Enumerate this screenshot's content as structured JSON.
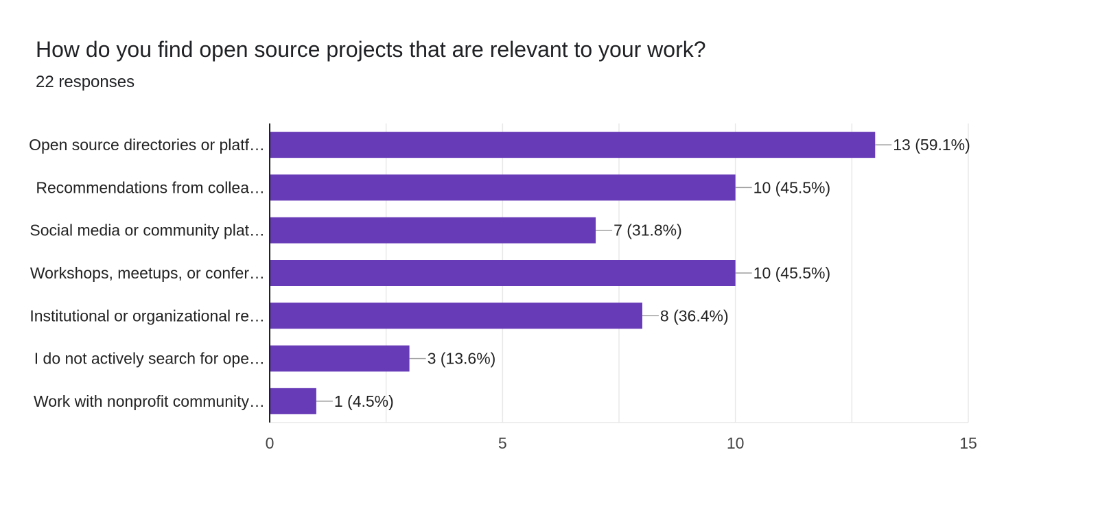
{
  "header": {
    "title": "How do you find open source projects that are relevant to your work?",
    "responses": "22 responses"
  },
  "colors": {
    "bar": "#673ab7",
    "grid": "#e8e8e8",
    "axis": "#222222",
    "leader": "#9e9e9e"
  },
  "chart_data": {
    "type": "bar",
    "orientation": "horizontal",
    "title": "How do you find open source projects that are relevant to your work?",
    "subtitle": "22 responses",
    "categories": [
      "Open source directories or platf…",
      "Recommendations from collea…",
      "Social media or community plat…",
      "Workshops, meetups, or confer…",
      "Institutional or organizational re…",
      "I do not actively search for ope…",
      "Work with nonprofit community…"
    ],
    "values": [
      13,
      10,
      7,
      10,
      8,
      3,
      1
    ],
    "data_labels": [
      "13 (59.1%)",
      "10 (45.5%)",
      "7 (31.8%)",
      "10 (45.5%)",
      "8 (36.4%)",
      "3 (13.6%)",
      "1 (4.5%)"
    ],
    "xlim": [
      0,
      15
    ],
    "xticks": [
      0,
      5,
      10,
      15
    ],
    "xlabel": "",
    "ylabel": "",
    "grid": true
  }
}
